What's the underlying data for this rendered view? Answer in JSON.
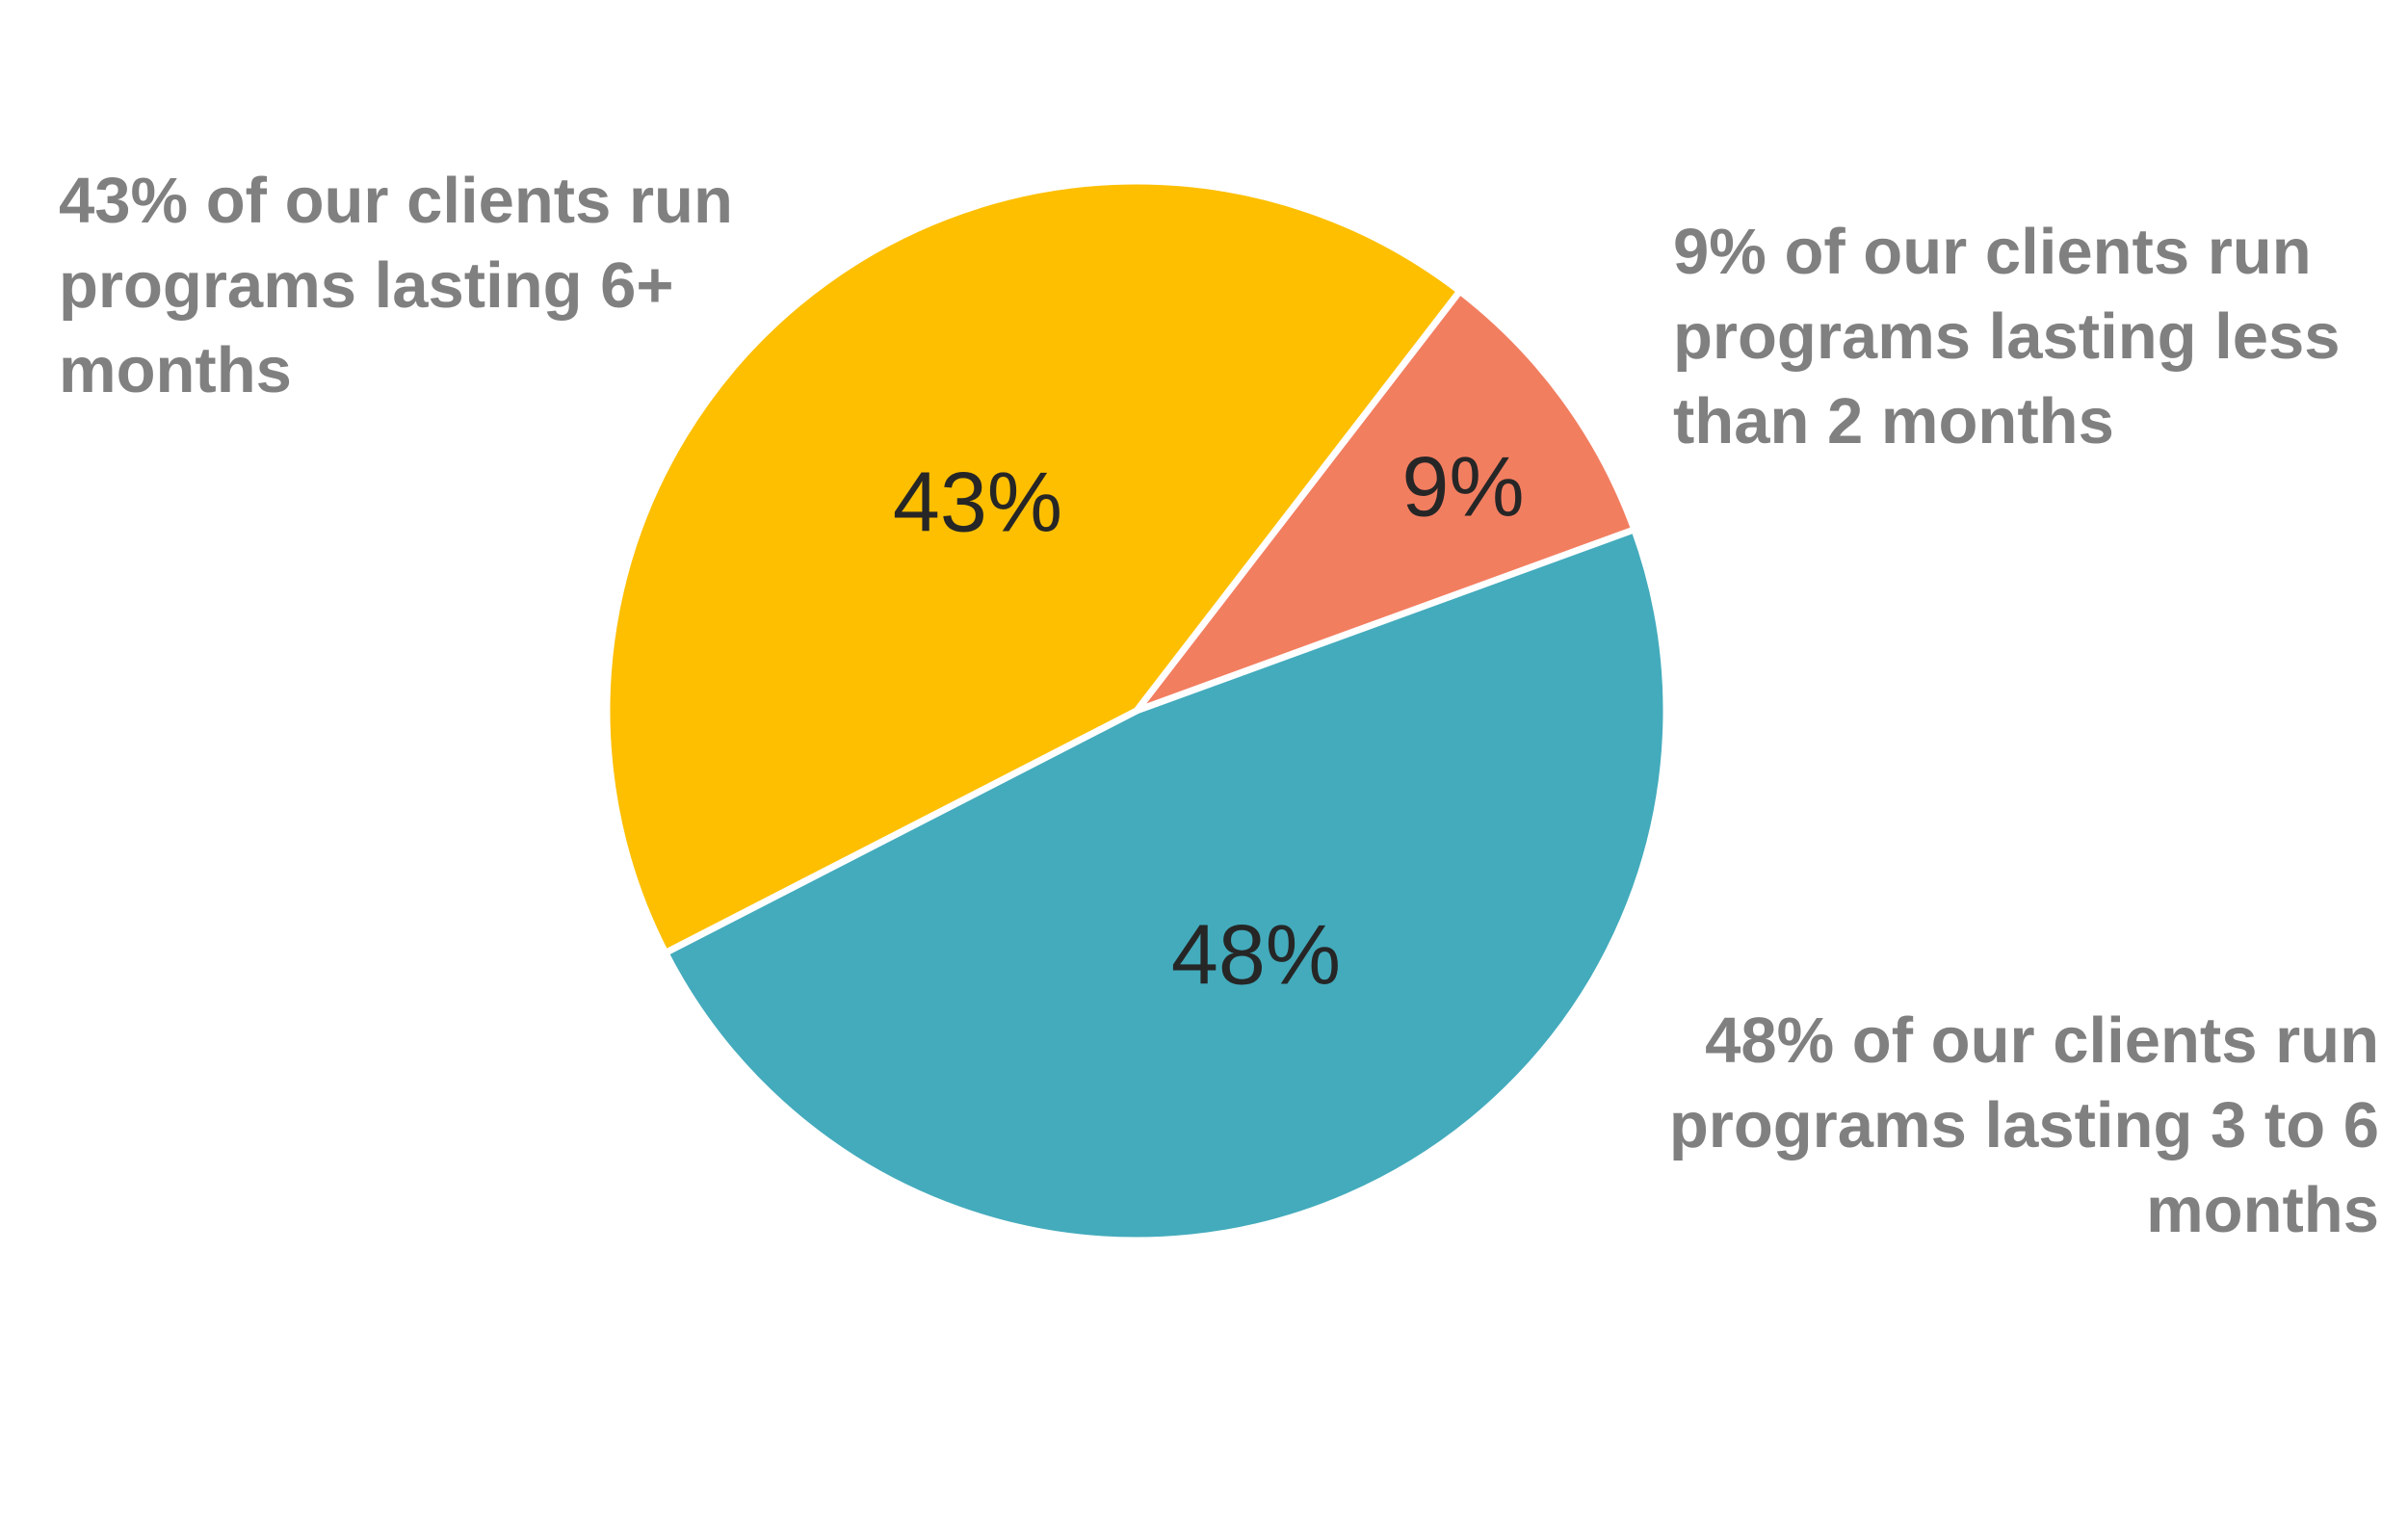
{
  "chart_data": {
    "type": "pie",
    "categories": [
      "Less than 2 months",
      "3 to 6 months",
      "6+ months"
    ],
    "values": [
      9,
      48,
      43
    ],
    "value_labels": [
      "9%",
      "48%",
      "43%"
    ],
    "colors": [
      "#f27e60",
      "#43abbc",
      "#fdbf00"
    ],
    "annotations": [
      [
        "9% of our clients run",
        "programs lasting less",
        "than 2 months"
      ],
      [
        "48% of our clients run",
        "programs lasting 3 to 6",
        "months"
      ],
      [
        "43% of our clients run",
        "programs lasting 6+",
        "months"
      ]
    ]
  }
}
